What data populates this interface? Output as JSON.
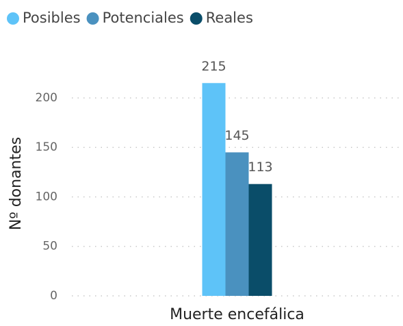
{
  "chart_data": {
    "type": "bar",
    "categories": [
      "Muerte encefálica"
    ],
    "series": [
      {
        "name": "Posibles",
        "color": "#5ec3f8",
        "values": [
          215
        ]
      },
      {
        "name": "Potenciales",
        "color": "#4a91bf",
        "values": [
          145
        ]
      },
      {
        "name": "Reales",
        "color": "#0a4d69",
        "values": [
          113
        ]
      }
    ],
    "y_label": "Nº donantes",
    "ylim": [
      0,
      230
    ],
    "yticks": [
      0,
      50,
      100,
      150,
      200
    ],
    "grid": true,
    "legend": "top-left"
  }
}
